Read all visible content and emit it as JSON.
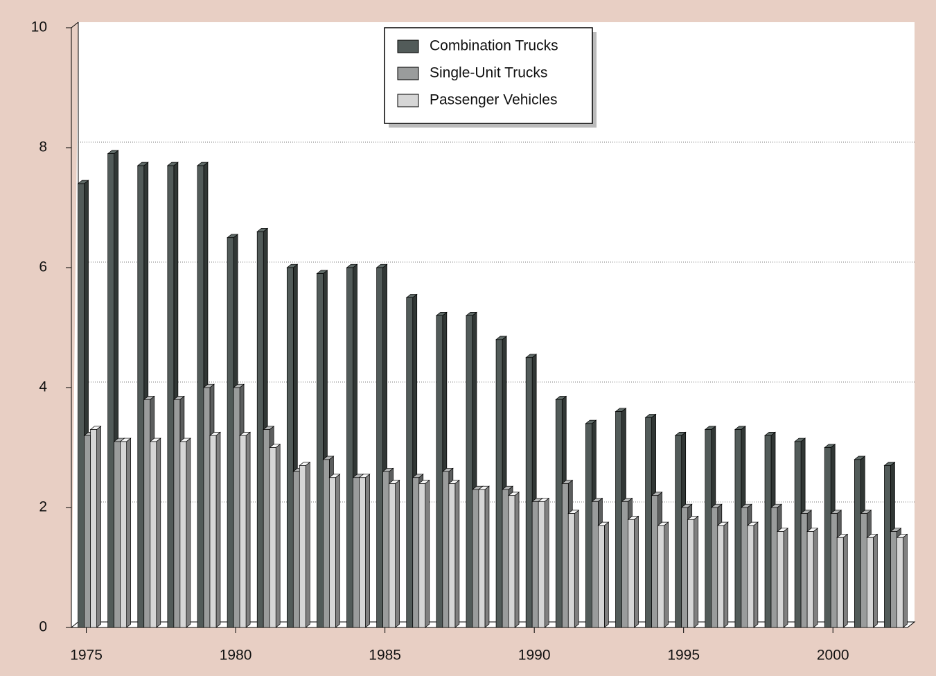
{
  "chart_data": {
    "type": "bar3d",
    "x": [
      1975,
      1976,
      1977,
      1978,
      1979,
      1980,
      1981,
      1982,
      1983,
      1984,
      1985,
      1986,
      1987,
      1988,
      1989,
      1990,
      1991,
      1992,
      1993,
      1994,
      1995,
      1996,
      1997,
      1998,
      1999,
      2000,
      2001,
      2002
    ],
    "xlim": [
      1974.5,
      2002.5
    ],
    "xticks": [
      1975,
      1980,
      1985,
      1990,
      1995,
      2000
    ],
    "ylim": [
      0,
      10
    ],
    "yticks": [
      0,
      2,
      4,
      6,
      8,
      10
    ],
    "grid": true,
    "legend": "top-center",
    "series": [
      {
        "name": "Combination Trucks",
        "color": "#525b59",
        "values": [
          7.4,
          7.9,
          7.7,
          7.7,
          7.7,
          6.5,
          6.6,
          6.0,
          5.9,
          6.0,
          6.0,
          5.5,
          5.2,
          5.2,
          4.8,
          4.5,
          3.8,
          3.4,
          3.6,
          3.5,
          3.2,
          3.3,
          3.3,
          3.2,
          3.1,
          3.0,
          2.8,
          2.7
        ]
      },
      {
        "name": "Single-Unit Trucks",
        "color": "#9a9c9c",
        "values": [
          3.2,
          3.1,
          3.8,
          3.8,
          4.0,
          4.0,
          3.3,
          2.6,
          2.8,
          2.5,
          2.6,
          2.5,
          2.6,
          2.3,
          2.3,
          2.1,
          2.4,
          2.1,
          2.1,
          2.2,
          2.0,
          2.0,
          2.0,
          2.0,
          1.9,
          1.9,
          1.9,
          1.6
        ]
      },
      {
        "name": "Passenger Vehicles",
        "color": "#d6d6d6",
        "values": [
          3.3,
          3.1,
          3.1,
          3.1,
          3.2,
          3.2,
          3.0,
          2.7,
          2.5,
          2.5,
          2.4,
          2.4,
          2.4,
          2.3,
          2.2,
          2.1,
          1.9,
          1.7,
          1.8,
          1.7,
          1.8,
          1.7,
          1.7,
          1.6,
          1.6,
          1.5,
          1.5,
          1.5
        ]
      }
    ]
  }
}
